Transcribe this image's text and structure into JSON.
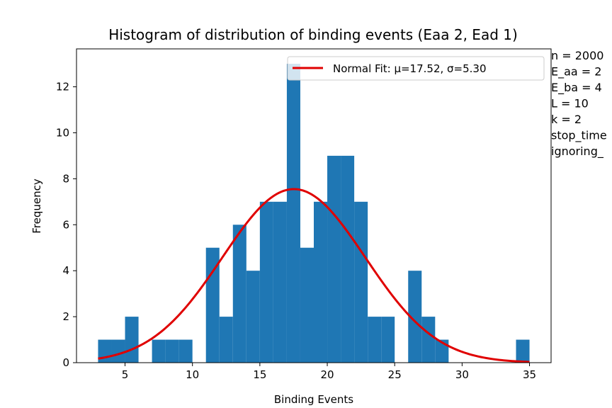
{
  "chart_data": {
    "type": "bar",
    "title": "Histogram of distribution of binding events (Eaa 2, Ead 1)",
    "xlabel": "Binding Events",
    "ylabel": "Frequency",
    "xlim": [
      1.4,
      36.6
    ],
    "ylim": [
      0,
      13.65
    ],
    "x_ticks": [
      5,
      10,
      15,
      20,
      25,
      30,
      35
    ],
    "y_ticks": [
      0,
      2,
      4,
      6,
      8,
      10,
      12
    ],
    "bins": [
      {
        "start": 3,
        "end": 4,
        "value": 1
      },
      {
        "start": 4,
        "end": 5,
        "value": 1
      },
      {
        "start": 5,
        "end": 6,
        "value": 2
      },
      {
        "start": 6,
        "end": 7,
        "value": 0
      },
      {
        "start": 7,
        "end": 8,
        "value": 1
      },
      {
        "start": 8,
        "end": 9,
        "value": 1
      },
      {
        "start": 9,
        "end": 10,
        "value": 1
      },
      {
        "start": 10,
        "end": 11,
        "value": 0
      },
      {
        "start": 11,
        "end": 12,
        "value": 5
      },
      {
        "start": 12,
        "end": 13,
        "value": 2
      },
      {
        "start": 13,
        "end": 14,
        "value": 6
      },
      {
        "start": 14,
        "end": 15,
        "value": 4
      },
      {
        "start": 15,
        "end": 16,
        "value": 7
      },
      {
        "start": 16,
        "end": 17,
        "value": 7
      },
      {
        "start": 17,
        "end": 18,
        "value": 13
      },
      {
        "start": 18,
        "end": 19,
        "value": 5
      },
      {
        "start": 19,
        "end": 20,
        "value": 7
      },
      {
        "start": 20,
        "end": 21,
        "value": 9
      },
      {
        "start": 21,
        "end": 22,
        "value": 9
      },
      {
        "start": 22,
        "end": 23,
        "value": 7
      },
      {
        "start": 23,
        "end": 24,
        "value": 2
      },
      {
        "start": 24,
        "end": 25,
        "value": 2
      },
      {
        "start": 25,
        "end": 26,
        "value": 0
      },
      {
        "start": 26,
        "end": 27,
        "value": 4
      },
      {
        "start": 27,
        "end": 28,
        "value": 2
      },
      {
        "start": 28,
        "end": 29,
        "value": 1
      },
      {
        "start": 29,
        "end": 30,
        "value": 0
      },
      {
        "start": 30,
        "end": 31,
        "value": 0
      },
      {
        "start": 31,
        "end": 32,
        "value": 0
      },
      {
        "start": 32,
        "end": 33,
        "value": 0
      },
      {
        "start": 33,
        "end": 34,
        "value": 0
      },
      {
        "start": 34,
        "end": 35,
        "value": 1
      }
    ],
    "fit": {
      "name": "Normal Fit: μ=17.52, σ=5.30",
      "mu": 17.52,
      "sigma": 5.3,
      "peak": 7.55,
      "x_range": [
        3,
        35
      ],
      "color": "#e00000"
    },
    "bar_color": "#1f77b4",
    "legend_position": "top-right",
    "grid": false,
    "side_text": [
      "n = 2000",
      "E_aa = 2",
      "E_ba = 4",
      "L = 10",
      "k = 2",
      "stop_time",
      "ignoring_"
    ]
  }
}
